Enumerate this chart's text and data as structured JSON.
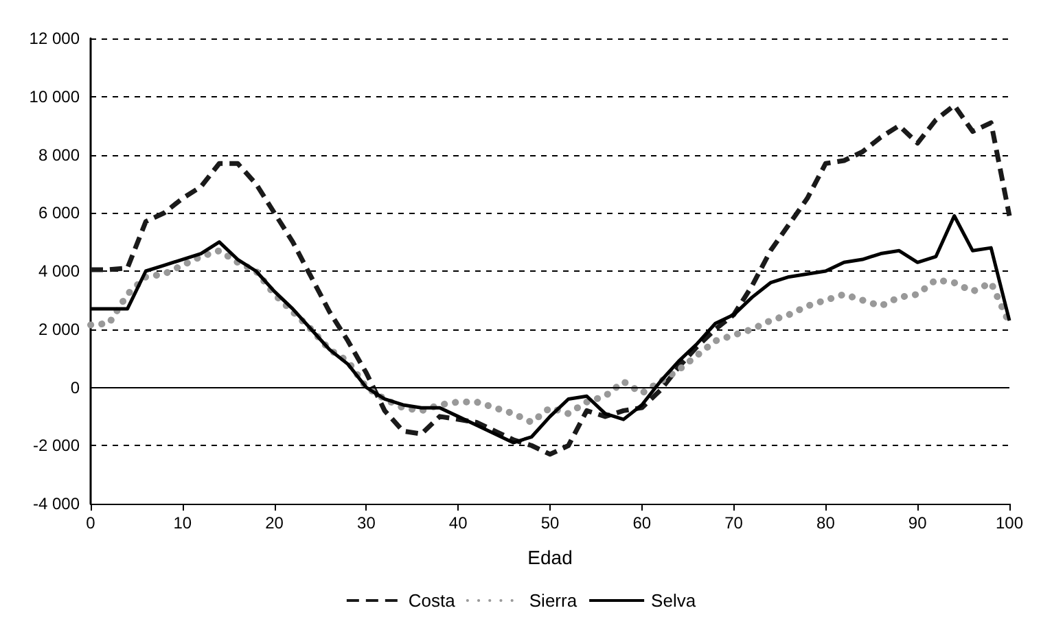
{
  "chart_data": {
    "type": "line",
    "xlabel": "Edad",
    "x": [
      0,
      2,
      4,
      6,
      8,
      10,
      12,
      14,
      16,
      18,
      20,
      22,
      24,
      26,
      28,
      30,
      32,
      34,
      36,
      38,
      40,
      42,
      44,
      46,
      48,
      50,
      52,
      54,
      56,
      58,
      60,
      62,
      64,
      66,
      68,
      70,
      72,
      74,
      76,
      78,
      80,
      82,
      84,
      86,
      88,
      90,
      92,
      94,
      96,
      98,
      100
    ],
    "series": [
      {
        "name": "Costa",
        "color": "#1a1a1a",
        "line_style": "dashed",
        "values": [
          4050,
          4050,
          4100,
          5700,
          6000,
          6500,
          6900,
          7700,
          7700,
          7000,
          6000,
          5000,
          3800,
          2600,
          1600,
          500,
          -800,
          -1500,
          -1600,
          -1000,
          -1100,
          -1200,
          -1500,
          -1800,
          -2000,
          -2300,
          -2000,
          -800,
          -1000,
          -800,
          -700,
          -100,
          700,
          1400,
          2000,
          2500,
          3500,
          4700,
          5600,
          6500,
          7700,
          7800,
          8100,
          8600,
          9000,
          8400,
          9200,
          9700,
          8800,
          9100,
          5900
        ]
      },
      {
        "name": "Sierra",
        "color": "#999999",
        "line_style": "dotted",
        "values": [
          2150,
          2200,
          3200,
          3800,
          3900,
          4200,
          4500,
          4700,
          4300,
          4000,
          3200,
          2600,
          2000,
          1300,
          900,
          0,
          -400,
          -700,
          -800,
          -600,
          -500,
          -500,
          -700,
          -900,
          -1200,
          -700,
          -900,
          -500,
          -300,
          200,
          -200,
          200,
          600,
          1100,
          1600,
          1800,
          2000,
          2300,
          2500,
          2800,
          3000,
          3200,
          3000,
          2800,
          3100,
          3200,
          3700,
          3600,
          3300,
          3600,
          2200
        ]
      },
      {
        "name": "Selva",
        "color": "#000000",
        "line_style": "solid",
        "values": [
          2700,
          2700,
          2700,
          4000,
          4200,
          4400,
          4600,
          5000,
          4400,
          4000,
          3300,
          2700,
          2000,
          1300,
          800,
          0,
          -400,
          -600,
          -700,
          -700,
          -1000,
          -1300,
          -1600,
          -1900,
          -1700,
          -1000,
          -400,
          -300,
          -900,
          -1100,
          -600,
          200,
          900,
          1500,
          2200,
          2500,
          3100,
          3600,
          3800,
          3900,
          4000,
          4300,
          4400,
          4600,
          4700,
          4300,
          4500,
          5900,
          4700,
          4800,
          2300
        ]
      }
    ],
    "xlim": [
      0,
      100
    ],
    "xticks": [
      0,
      10,
      20,
      30,
      40,
      50,
      60,
      70,
      80,
      90,
      100
    ],
    "ylim": [
      -4000,
      12000
    ],
    "yticks": [
      {
        "value": -4000,
        "label": "-4 000"
      },
      {
        "value": -2000,
        "label": "-2 000"
      },
      0,
      {
        "value": 2000,
        "label": "2 000"
      },
      {
        "value": 4000,
        "label": "4 000"
      },
      {
        "value": 6000,
        "label": "6 000"
      },
      {
        "value": 8000,
        "label": "8 000"
      },
      {
        "value": 10000,
        "label": "10 000"
      },
      {
        "value": 12000,
        "label": "12 000"
      }
    ],
    "grid": "y",
    "legend": "bottom",
    "marker": "none",
    "ref_lines": [
      {
        "axis": "y",
        "value": 0,
        "color": "#000000",
        "line_style": "solid"
      }
    ]
  }
}
